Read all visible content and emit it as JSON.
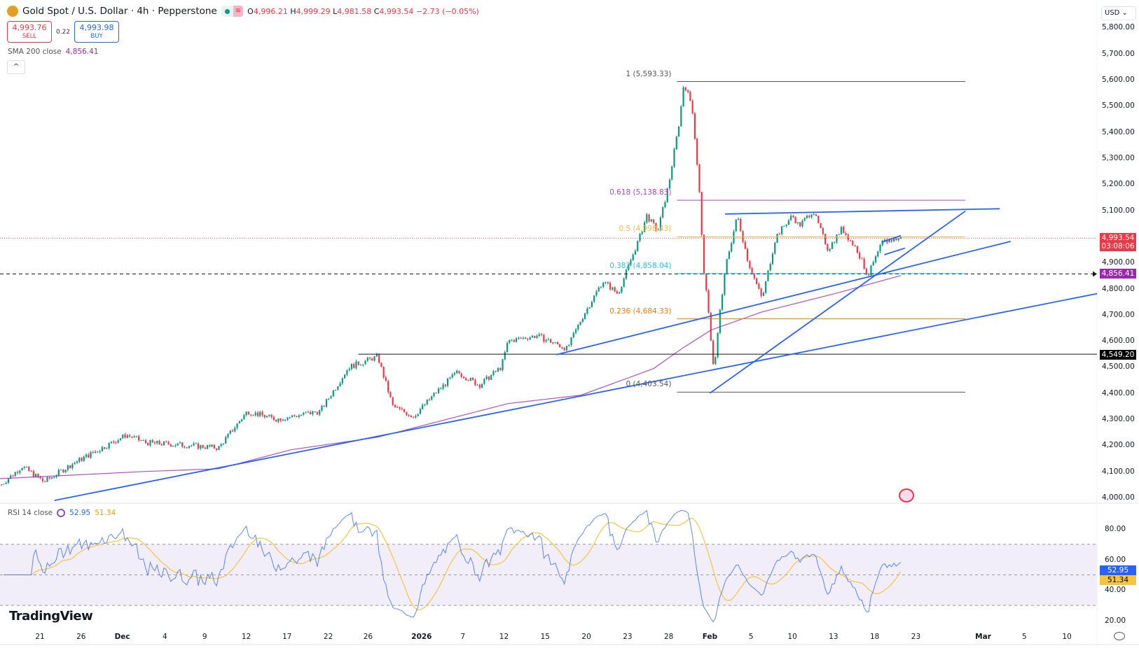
{
  "header": {
    "title": "Gold Spot / U.S. Dollar · 4h · Pepperstone",
    "open_label": "O",
    "open": "4,996.21",
    "high_label": "H",
    "high": "4,999.29",
    "low_label": "L",
    "low": "4,981.58",
    "close_label": "C",
    "close": "4,993.54",
    "change": "−2.73 (−0.05%)"
  },
  "trade": {
    "sell_price": "4,993.76",
    "sell_label": "SELL",
    "spread": "0.22",
    "buy_price": "4,993.98",
    "buy_label": "BUY"
  },
  "sma": {
    "label": "SMA 200 close",
    "value": "4,856.41"
  },
  "collapse_icon": "^",
  "currency": "USD ⌄",
  "rsi": {
    "label": "RSI 14 close",
    "value": "52.95",
    "ma_value": "51.34"
  },
  "brand": "TradingView",
  "colors": {
    "up": "#089981",
    "down": "#f23645",
    "trend": "#2962ff",
    "sma": "#9c27b0",
    "rsi": "#2962ff",
    "rsi_ma": "#f5c542"
  },
  "badges": {
    "last_price": "4,993.54",
    "countdown": "03:08:06",
    "sma_price": "4,856.41",
    "level_price": "4,549.20",
    "rsi": "52.95",
    "rsi_ma": "51.34"
  },
  "chart_data": {
    "type": "candlestick",
    "price_ticks": [
      "5,800.00",
      "5,700.00",
      "5,600.00",
      "5,500.00",
      "5,400.00",
      "5,300.00",
      "5,200.00",
      "5,100.00",
      "4,900.00",
      "4,800.00",
      "4,700.00",
      "4,600.00",
      "4,500.00",
      "4,400.00",
      "4,300.00",
      "4,200.00",
      "4,100.00",
      "4,000.00"
    ],
    "price_tick_values": [
      5800,
      5700,
      5600,
      5500,
      5400,
      5300,
      5200,
      5100,
      4900,
      4800,
      4700,
      4600,
      4500,
      4400,
      4300,
      4200,
      4100,
      4000
    ],
    "rsi_ticks": [
      "80.00",
      "60.00",
      "40.00",
      "20.00"
    ],
    "rsi_tick_values": [
      80,
      60,
      40,
      20
    ],
    "time_ticks": [
      {
        "t": 0,
        "label": "21"
      },
      {
        "t": 3,
        "label": "26"
      },
      {
        "t": 6,
        "label": "Dec"
      },
      {
        "t": 9.1,
        "label": "4"
      },
      {
        "t": 12,
        "label": "9"
      },
      {
        "t": 15.03,
        "label": "12"
      },
      {
        "t": 18,
        "label": "17"
      },
      {
        "t": 21,
        "label": "22"
      },
      {
        "t": 23.9,
        "label": "26"
      },
      {
        "t": 27.8,
        "label": "2026"
      },
      {
        "t": 30.8,
        "label": "7"
      },
      {
        "t": 33.8,
        "label": "12"
      },
      {
        "t": 36.8,
        "label": "15"
      },
      {
        "t": 39.8,
        "label": "20"
      },
      {
        "t": 42.8,
        "label": "23"
      },
      {
        "t": 45.8,
        "label": "28"
      },
      {
        "t": 48.8,
        "label": "Feb"
      },
      {
        "t": 51.8,
        "label": "5"
      },
      {
        "t": 54.8,
        "label": "10"
      },
      {
        "t": 57.8,
        "label": "13"
      },
      {
        "t": 60.8,
        "label": "18"
      },
      {
        "t": 63.8,
        "label": "23"
      },
      {
        "t": 68.7,
        "label": "Mar"
      },
      {
        "t": 71.7,
        "label": "5"
      },
      {
        "t": 74.8,
        "label": "10"
      }
    ],
    "price_path": [
      [
        -2.8,
        4050
      ],
      [
        -1.3,
        4120
      ],
      [
        0.3,
        4060
      ],
      [
        2.4,
        4130
      ],
      [
        6.3,
        4240
      ],
      [
        7.7,
        4210
      ],
      [
        10.8,
        4200
      ],
      [
        13,
        4190
      ],
      [
        15.1,
        4330
      ],
      [
        17.2,
        4300
      ],
      [
        20.4,
        4330
      ],
      [
        22.5,
        4500
      ],
      [
        24.6,
        4540
      ],
      [
        25.7,
        4350
      ],
      [
        27.2,
        4310
      ],
      [
        28.8,
        4400
      ],
      [
        30.4,
        4480
      ],
      [
        32,
        4430
      ],
      [
        33.6,
        4500
      ],
      [
        34.1,
        4600
      ],
      [
        36.2,
        4620
      ],
      [
        38.4,
        4570
      ],
      [
        39.4,
        4680
      ],
      [
        41,
        4830
      ],
      [
        42.1,
        4780
      ],
      [
        43.7,
        5000
      ],
      [
        44.2,
        5080
      ],
      [
        45,
        5020
      ],
      [
        45.8,
        5200
      ],
      [
        46.6,
        5450
      ],
      [
        46.9,
        5590
      ],
      [
        47.5,
        5500
      ],
      [
        48,
        5200
      ],
      [
        48.3,
        4900
      ],
      [
        48.7,
        4700
      ],
      [
        49.1,
        4480
      ],
      [
        49.5,
        4700
      ],
      [
        50,
        4900
      ],
      [
        50.8,
        5080
      ],
      [
        51.6,
        4900
      ],
      [
        52.6,
        4760
      ],
      [
        53.6,
        5000
      ],
      [
        54.8,
        5080
      ],
      [
        55.3,
        5040
      ],
      [
        56.3,
        5100
      ],
      [
        57.4,
        4950
      ],
      [
        58.4,
        5030
      ],
      [
        59.5,
        4950
      ],
      [
        60.3,
        4850
      ],
      [
        61.4,
        4980
      ],
      [
        62.7,
        4993.54
      ]
    ],
    "sma200_path": [
      [
        -3,
        4072
      ],
      [
        2.4,
        4086
      ],
      [
        7.7,
        4100
      ],
      [
        13,
        4110
      ],
      [
        18.3,
        4183
      ],
      [
        24.6,
        4231
      ],
      [
        34.1,
        4360
      ],
      [
        39.4,
        4392
      ],
      [
        44.7,
        4494
      ],
      [
        46.8,
        4572
      ],
      [
        48.9,
        4642
      ],
      [
        52.6,
        4711
      ],
      [
        57.9,
        4781
      ],
      [
        62.7,
        4850
      ]
    ],
    "trendlines": [
      [
        [
          1.06,
          3989
        ],
        [
          77,
          4781
        ]
      ],
      [
        [
          37.6,
          4547
        ],
        [
          70.7,
          4981
        ]
      ],
      [
        [
          48.8,
          4400
        ],
        [
          67.4,
          5097
        ]
      ],
      [
        [
          49.9,
          5086
        ],
        [
          69.9,
          5106
        ]
      ],
      [
        [
          61.3,
          4978
        ],
        [
          62.7,
          5003
        ]
      ],
      [
        [
          61.5,
          4930
        ],
        [
          63,
          4955
        ]
      ]
    ],
    "horizontal_levels": [
      {
        "price": 4549.2,
        "from_t": 23.2
      },
      {
        "price": 4856.41,
        "dashed": true
      },
      {
        "price": 4993.54,
        "dotted": true
      }
    ],
    "fibonacci": {
      "from_t": 46.4,
      "to_t": 67.4,
      "levels": [
        {
          "ratio": "1",
          "text": "1 (5,593.33)",
          "price": 5593.33,
          "color": "#555555"
        },
        {
          "ratio": "0.618",
          "text": "0.618 (5,138.83)",
          "price": 5138.83,
          "color": "#ab47bc"
        },
        {
          "ratio": "0.5",
          "text": "0.5 (4,998.43)",
          "price": 4998.43,
          "color": "#f5b942"
        },
        {
          "ratio": "0.382",
          "text": "0.382 (4,858.04)",
          "price": 4858.04,
          "color": "#26c6da"
        },
        {
          "ratio": "0.236",
          "text": "0.236 (4,684.33)",
          "price": 4684.33,
          "color": "#f57c00"
        },
        {
          "ratio": "0",
          "text": "0 (4,403.54)",
          "price": 4403.54,
          "color": "#555555"
        }
      ]
    },
    "rsi_band": [
      30,
      70
    ],
    "rsi_mid": 50
  }
}
